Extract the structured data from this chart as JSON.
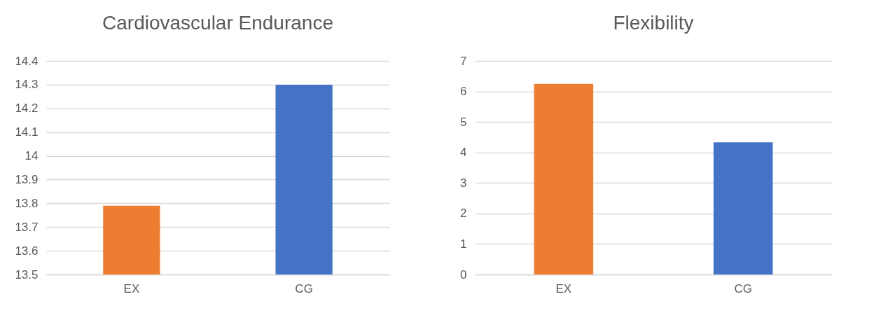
{
  "chart_data": [
    {
      "type": "bar",
      "title": "Cardiovascular Endurance",
      "categories": [
        "EX",
        "CG"
      ],
      "values": [
        13.79,
        14.3
      ],
      "colors": [
        "#ed7d31",
        "#4472c4"
      ],
      "ylim": [
        13.5,
        14.4
      ],
      "yticks": [
        13.5,
        13.6,
        13.7,
        13.8,
        13.9,
        {
          "value": 14,
          "label": "14"
        },
        14.1,
        14.2,
        14.3,
        14.4
      ],
      "grid": "y"
    },
    {
      "type": "bar",
      "title": "Flexibility",
      "categories": [
        "EX",
        "CG"
      ],
      "values": [
        6.25,
        4.33
      ],
      "colors": [
        "#ed7d31",
        "#4472c4"
      ],
      "ylim": [
        0,
        7
      ],
      "yticks": [
        0,
        1,
        2,
        3,
        4,
        5,
        6,
        7
      ],
      "grid": "y"
    }
  ]
}
